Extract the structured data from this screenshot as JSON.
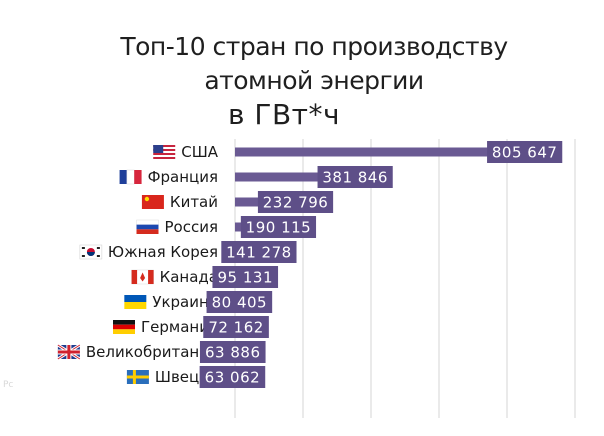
{
  "title": {
    "line1": "Топ-10 стран по производству",
    "line2": "атомной энергии",
    "line3": "в ГВт*ч"
  },
  "watermark": "Рс",
  "colors": {
    "bar": "#6a5a93",
    "label_box": "#5e4f88",
    "label_text": "#ffffff",
    "grid": "#d4d4d4"
  },
  "chart_data": {
    "type": "bar",
    "orientation": "horizontal",
    "title": "Топ-10 стран по производству атомной энергии в ГВт*ч",
    "categories": [
      "США",
      "Франция",
      "Китай",
      "Россия",
      "Южная Корея",
      "Канада",
      "Украина",
      "Германия",
      "Великобритания",
      "Швеция"
    ],
    "flags": [
      "us-flag-icon",
      "france-flag-icon",
      "china-flag-icon",
      "russia-flag-icon",
      "south-korea-flag-icon",
      "canada-flag-icon",
      "ukraine-flag-icon",
      "germany-flag-icon",
      "uk-flag-icon",
      "sweden-flag-icon"
    ],
    "values": [
      805647,
      381846,
      232796,
      190115,
      141278,
      95131,
      80405,
      72162,
      63886,
      63062
    ],
    "value_labels": [
      "805 647",
      "381 846",
      "232 796",
      "190 115",
      "141 278",
      "95 131",
      "80 405",
      "72 162",
      "63 886",
      "63 062"
    ],
    "xlim": [
      0,
      850000
    ],
    "grid": true
  }
}
